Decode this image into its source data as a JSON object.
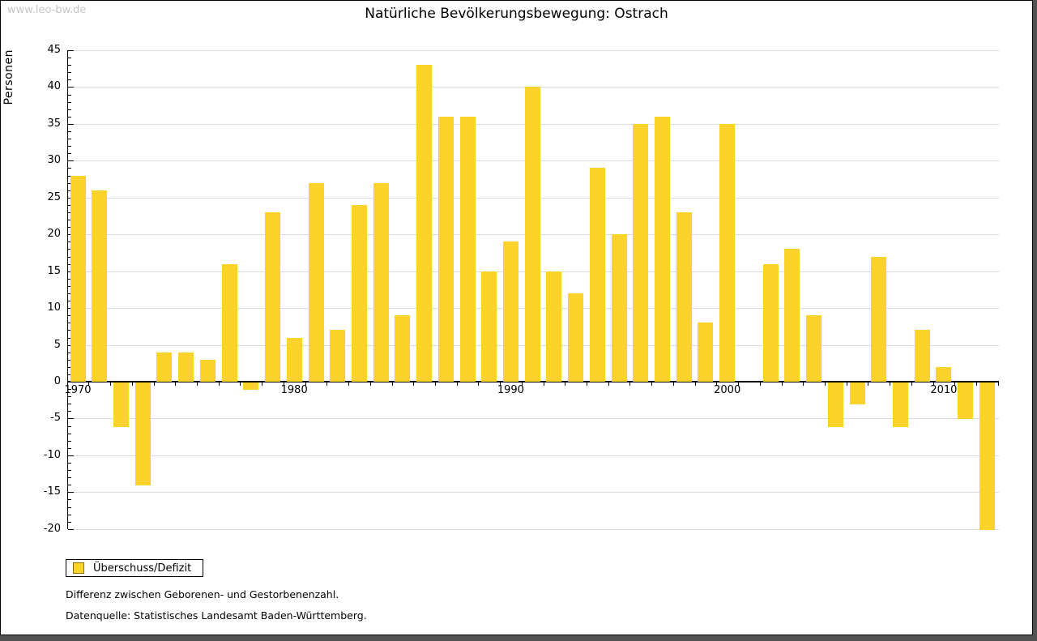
{
  "watermark": "www.leo-bw.de",
  "chart_data": {
    "type": "bar",
    "title": "Natürliche Bevölkerungsbewegung: Ostrach",
    "ylabel": "Personen",
    "xlabel": "",
    "legend": "Überschuss/Defizit",
    "legend_position": "bottom-left",
    "grid": true,
    "ylim": [
      -20,
      45
    ],
    "ytick_step": 5,
    "ytick_minor_step": 1,
    "xtick_labels_shown": [
      "1970",
      "1980",
      "1990",
      "2000",
      "2010"
    ],
    "bar_color": "#fbd32a",
    "bar_border_color": "#8a7100",
    "categories": [
      1970,
      1971,
      1972,
      1973,
      1974,
      1975,
      1976,
      1977,
      1978,
      1979,
      1980,
      1981,
      1982,
      1983,
      1984,
      1985,
      1986,
      1987,
      1988,
      1989,
      1990,
      1991,
      1992,
      1993,
      1994,
      1995,
      1996,
      1997,
      1998,
      1999,
      2000,
      2001,
      2002,
      2003,
      2004,
      2005,
      2006,
      2007,
      2008,
      2009,
      2010,
      2011,
      2012
    ],
    "series": [
      {
        "name": "Überschuss/Defizit",
        "values": [
          28,
          26,
          -6,
          -14,
          4,
          4,
          3,
          16,
          -1,
          23,
          6,
          27,
          7,
          24,
          27,
          9,
          43,
          36,
          36,
          15,
          19,
          40,
          15,
          12,
          29,
          20,
          35,
          36,
          23,
          8,
          35,
          0,
          16,
          18,
          9,
          -6,
          -3,
          17,
          -6,
          7,
          2,
          -5,
          -20
        ]
      }
    ]
  },
  "notes": [
    "Differenz zwischen Geborenen- und Gestorbenenzahl.",
    "Datenquelle: Statistisches Landesamt Baden-Württemberg."
  ]
}
